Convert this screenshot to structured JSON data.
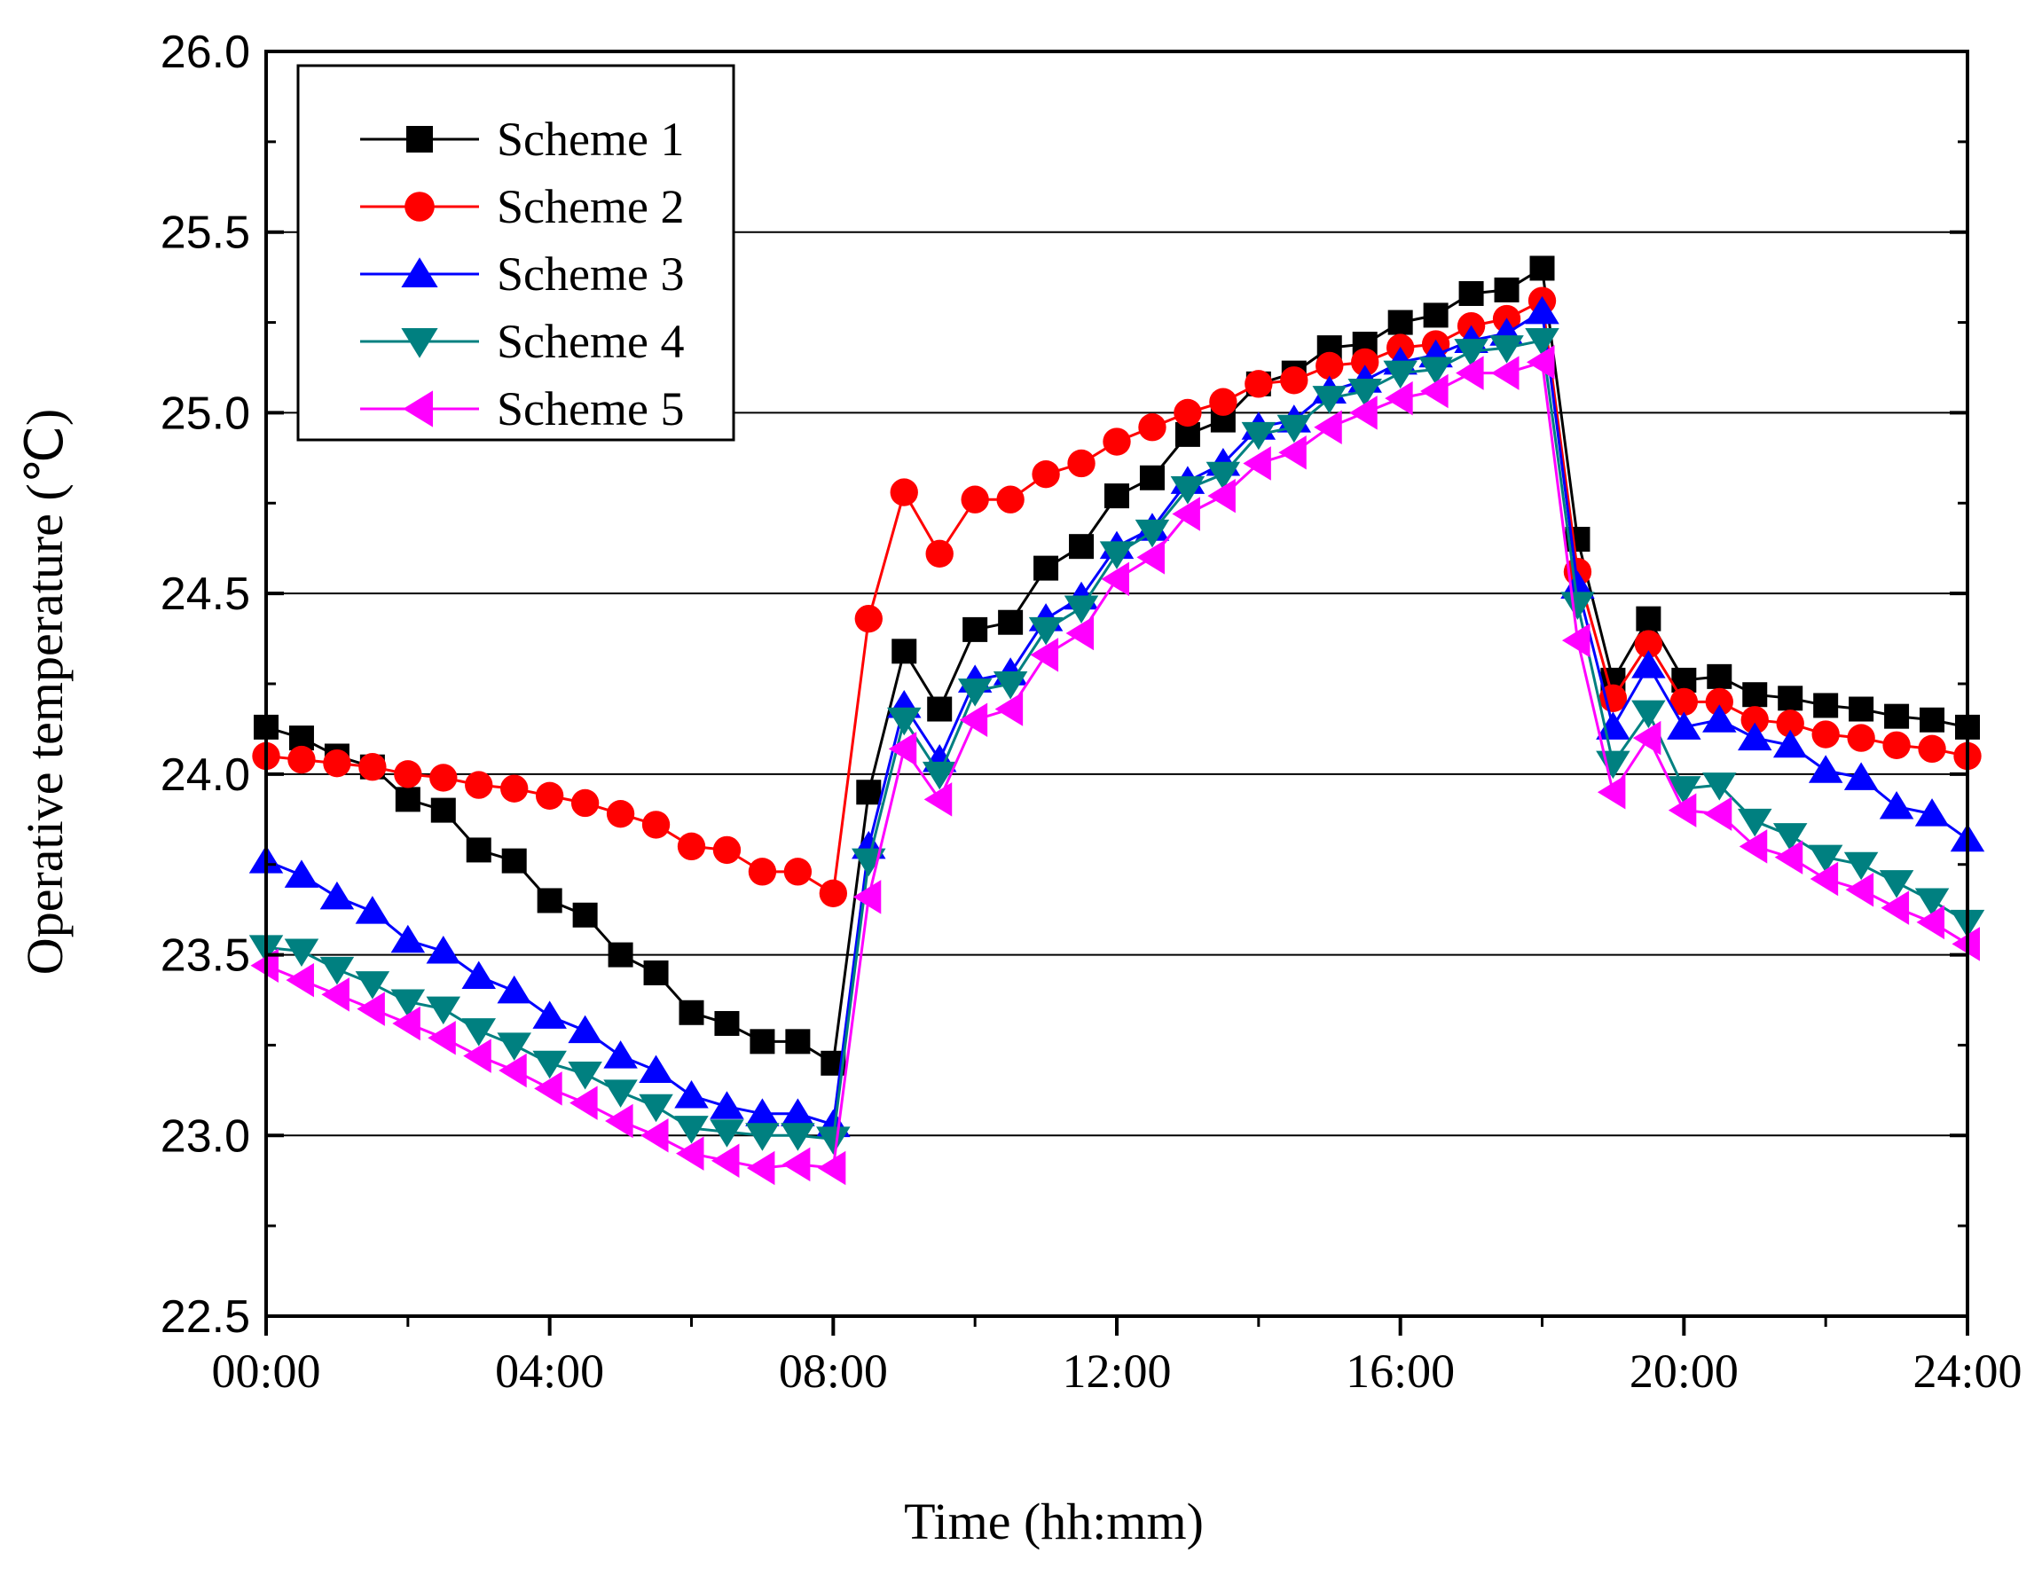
{
  "chart_data": {
    "type": "line",
    "xlabel": "Time (hh:mm)",
    "ylabel": "Operative temperature (℃)",
    "xlim": [
      0,
      24
    ],
    "ylim": [
      22.5,
      26.0
    ],
    "x_ticks": [
      "00:00",
      "04:00",
      "08:00",
      "12:00",
      "16:00",
      "20:00",
      "24:00"
    ],
    "y_ticks": [
      "22.5",
      "23.0",
      "23.5",
      "24.0",
      "24.5",
      "25.0",
      "25.5",
      "26.0"
    ],
    "grid": "horizontal",
    "legend_position": "top-left",
    "x": [
      0,
      0.5,
      1,
      1.5,
      2,
      2.5,
      3,
      3.5,
      4,
      4.5,
      5,
      5.5,
      6,
      6.5,
      7,
      7.5,
      8,
      8.5,
      9,
      9.5,
      10,
      10.5,
      11,
      11.5,
      12,
      12.5,
      13,
      13.5,
      14,
      14.5,
      15,
      15.5,
      16,
      16.5,
      17,
      17.5,
      18,
      18.5,
      19,
      19.5,
      20,
      20.5,
      21,
      21.5,
      22,
      22.5,
      23,
      23.5,
      24
    ],
    "series": [
      {
        "name": "Scheme 1",
        "color": "#000000",
        "marker": "square",
        "values": [
          24.13,
          24.1,
          24.05,
          24.02,
          23.93,
          23.9,
          23.79,
          23.76,
          23.65,
          23.61,
          23.5,
          23.45,
          23.34,
          23.31,
          23.26,
          23.26,
          23.2,
          23.95,
          24.34,
          24.18,
          24.4,
          24.42,
          24.57,
          24.63,
          24.77,
          24.82,
          24.94,
          24.98,
          25.08,
          25.11,
          25.18,
          25.19,
          25.25,
          25.27,
          25.33,
          25.34,
          25.4,
          24.65,
          24.26,
          24.43,
          24.26,
          24.27,
          24.22,
          24.21,
          24.19,
          24.18,
          24.16,
          24.15,
          24.13
        ]
      },
      {
        "name": "Scheme 2",
        "color": "#ff0000",
        "marker": "circle",
        "values": [
          24.05,
          24.04,
          24.03,
          24.02,
          24.0,
          23.99,
          23.97,
          23.96,
          23.94,
          23.92,
          23.89,
          23.86,
          23.8,
          23.79,
          23.73,
          23.73,
          23.67,
          24.43,
          24.78,
          24.61,
          24.76,
          24.76,
          24.83,
          24.86,
          24.92,
          24.96,
          25.0,
          25.03,
          25.08,
          25.09,
          25.13,
          25.14,
          25.18,
          25.19,
          25.24,
          25.26,
          25.31,
          24.56,
          24.21,
          24.36,
          24.2,
          24.2,
          24.15,
          24.14,
          24.11,
          24.1,
          24.08,
          24.07,
          24.05
        ]
      },
      {
        "name": "Scheme 3",
        "color": "#0000ff",
        "marker": "triangle-up",
        "values": [
          23.76,
          23.72,
          23.66,
          23.62,
          23.54,
          23.51,
          23.44,
          23.4,
          23.33,
          23.29,
          23.22,
          23.18,
          23.11,
          23.08,
          23.06,
          23.06,
          23.03,
          23.8,
          24.19,
          24.04,
          24.26,
          24.28,
          24.43,
          24.49,
          24.63,
          24.68,
          24.81,
          24.86,
          24.96,
          24.98,
          25.06,
          25.09,
          25.14,
          25.16,
          25.2,
          25.22,
          25.28,
          24.52,
          24.13,
          24.3,
          24.13,
          24.15,
          24.1,
          24.08,
          24.01,
          23.99,
          23.91,
          23.89,
          23.82
        ]
      },
      {
        "name": "Scheme 4",
        "color": "#008080",
        "marker": "triangle-down",
        "values": [
          23.52,
          23.51,
          23.46,
          23.42,
          23.37,
          23.35,
          23.29,
          23.25,
          23.2,
          23.17,
          23.12,
          23.08,
          23.02,
          23.01,
          23.0,
          23.0,
          22.99,
          23.76,
          24.15,
          24.0,
          24.23,
          24.25,
          24.4,
          24.46,
          24.61,
          24.67,
          24.79,
          24.83,
          24.94,
          24.96,
          25.04,
          25.06,
          25.11,
          25.12,
          25.17,
          25.18,
          25.2,
          24.47,
          24.03,
          24.17,
          23.96,
          23.97,
          23.87,
          23.83,
          23.77,
          23.75,
          23.7,
          23.65,
          23.59
        ]
      },
      {
        "name": "Scheme 5",
        "color": "#ff00ff",
        "marker": "triangle-left",
        "values": [
          23.47,
          23.43,
          23.39,
          23.35,
          23.31,
          23.27,
          23.22,
          23.18,
          23.13,
          23.09,
          23.04,
          23.0,
          22.95,
          22.93,
          22.91,
          22.92,
          22.91,
          23.66,
          24.07,
          23.93,
          24.15,
          24.18,
          24.33,
          24.39,
          24.54,
          24.6,
          24.72,
          24.77,
          24.86,
          24.89,
          24.96,
          25.0,
          25.04,
          25.06,
          25.11,
          25.11,
          25.14,
          24.37,
          23.95,
          24.1,
          23.9,
          23.89,
          23.8,
          23.77,
          23.71,
          23.68,
          23.63,
          23.59,
          23.53
        ]
      }
    ]
  }
}
